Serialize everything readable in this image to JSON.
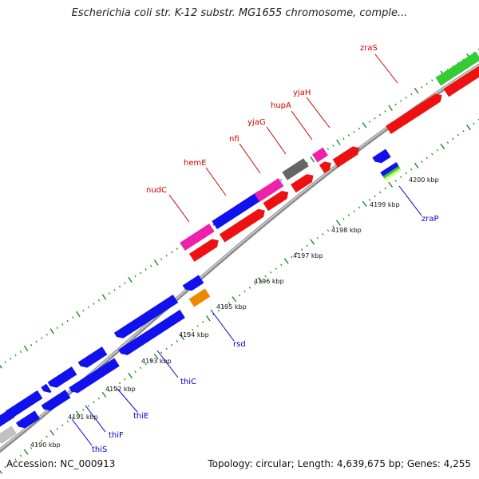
{
  "title": "Escherichia coli str. K-12 substr. MG1655 chromosome, comple...",
  "footer": {
    "accession": "Accession: NC_000913",
    "topology": "Topology: circular; Length: 4,639,675 bp; Genes: 4,255"
  },
  "colors": {
    "red": "#ee1111",
    "blue": "#1111ee",
    "pink": "#ee22aa",
    "gray": "#666666",
    "green": "#33cc33",
    "orange": "#ee8800",
    "backbone": "#999999",
    "tick": "#228822",
    "label_red": "#cc0000",
    "label_blue": "#0000cc"
  },
  "kbp_labels": [
    "4190 kbp",
    "4191 kbp",
    "4192 kbp",
    "4193 kbp",
    "4194 kbp",
    "4195 kbp",
    "4196 kbp",
    "4197 kbp",
    "4198 kbp",
    "4199 kbp",
    "4200 kbp"
  ],
  "gene_labels_top": [
    "nudC",
    "hemE",
    "nfi",
    "yjaG",
    "hupA",
    "yjaH",
    "zraS"
  ],
  "gene_labels_bottom": [
    "thiS",
    "thiF",
    "thiE",
    "thiC",
    "rsd",
    "zraP"
  ]
}
